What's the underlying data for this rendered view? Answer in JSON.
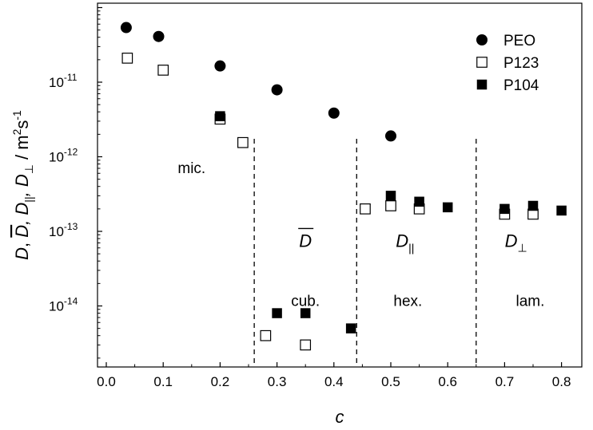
{
  "chart_data": {
    "type": "scatter",
    "title": "",
    "xlabel": "c",
    "ylabel": {
      "parts": [
        "D",
        ", ",
        "D",
        ", D",
        "||",
        ", D",
        "⊥",
        " / m",
        "2",
        "s",
        "-1"
      ]
    },
    "xscale": "linear",
    "yscale": "log",
    "xlim": [
      0.0,
      0.86
    ],
    "ylim": [
      3e-15,
      7e-11
    ],
    "x_ticks": [
      "0.0",
      "0.1",
      "0.2",
      "0.3",
      "0.4",
      "0.5",
      "0.6",
      "0.7",
      "0.8"
    ],
    "y_ticks": [
      {
        "value": 1e-11,
        "base": "10",
        "exp": "-11"
      },
      {
        "value": 1e-12,
        "base": "10",
        "exp": "-12"
      },
      {
        "value": 1e-13,
        "base": "10",
        "exp": "-13"
      },
      {
        "value": 1e-14,
        "base": "10",
        "exp": "-14"
      }
    ],
    "legend_position": "top-right",
    "series": [
      {
        "name": "PEO",
        "marker": "filled-circle",
        "color": "#000000",
        "points": [
          [
            0.035,
            5.4e-11
          ],
          [
            0.092,
            4.1e-11
          ],
          [
            0.2,
            1.65e-11
          ],
          [
            0.3,
            7.9e-12
          ],
          [
            0.4,
            3.85e-12
          ],
          [
            0.5,
            1.9e-12
          ]
        ]
      },
      {
        "name": "P123",
        "marker": "open-square",
        "color": "#000000",
        "points": [
          [
            0.037,
            2.1e-11
          ],
          [
            0.1,
            1.45e-11
          ],
          [
            0.2,
            3.2e-12
          ],
          [
            0.24,
            1.55e-12
          ],
          [
            0.28,
            4e-15
          ],
          [
            0.35,
            3e-15
          ],
          [
            0.455,
            2e-13
          ],
          [
            0.5,
            2.2e-13
          ],
          [
            0.55,
            2e-13
          ],
          [
            0.7,
            1.7e-13
          ],
          [
            0.75,
            1.7e-13
          ]
        ]
      },
      {
        "name": "P104",
        "marker": "filled-square",
        "color": "#000000",
        "points": [
          [
            0.2,
            3.5e-12
          ],
          [
            0.3,
            8e-15
          ],
          [
            0.35,
            8e-15
          ],
          [
            0.43,
            5e-15
          ],
          [
            0.5,
            3e-13
          ],
          [
            0.55,
            2.5e-13
          ],
          [
            0.6,
            2.1e-13
          ],
          [
            0.7,
            2e-13
          ],
          [
            0.75,
            2.2e-13
          ],
          [
            0.8,
            1.9e-13
          ]
        ]
      }
    ],
    "phase_boundaries": [
      0.26,
      0.44,
      0.65
    ],
    "region_labels": [
      {
        "text": "mic.",
        "x": 0.15,
        "y": 6e-13
      },
      {
        "text": "cub.",
        "x": 0.35,
        "y": 1e-14
      },
      {
        "text": "hex.",
        "x": 0.53,
        "y": 1e-14
      },
      {
        "text": "lam.",
        "x": 0.745,
        "y": 1e-14
      }
    ],
    "coefficient_labels": [
      {
        "symbol": "D",
        "decoration": "overline",
        "x": 0.35,
        "y": 6.2e-14
      },
      {
        "symbol": "D",
        "sub": "||",
        "x": 0.525,
        "y": 6.2e-14
      },
      {
        "symbol": "D",
        "sub": "⊥",
        "x": 0.72,
        "y": 6.2e-14
      }
    ]
  }
}
